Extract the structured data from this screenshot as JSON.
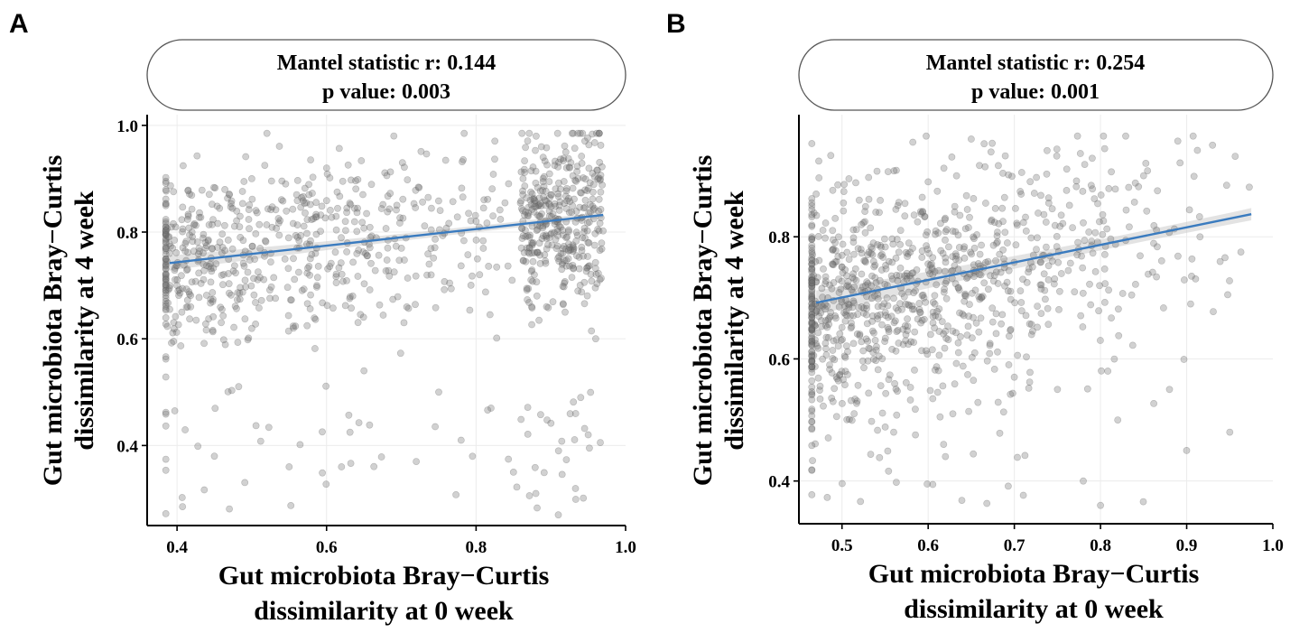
{
  "colors": {
    "points": "#6f6f6f",
    "fit_line": "#3a7bbf",
    "band": "#cccccc",
    "grid": "#ececec",
    "axis": "#000000"
  },
  "chart_data": [
    {
      "panel": "A",
      "type": "scatter",
      "strip_line1": "Mantel statistic r: 0.144",
      "strip_line2": "p value: 0.003",
      "xlabel_line1": "Gut microbiota Bray−Curtis",
      "xlabel_line2": "dissimilarity at 0 week",
      "ylabel_line1": "Gut microbiota Bray−Curtis",
      "ylabel_line2": "dissimilarity at 4 week",
      "xlim": [
        0.36,
        1.0
      ],
      "ylim": [
        0.25,
        1.02
      ],
      "xticks": [
        0.4,
        0.6,
        0.8,
        1.0
      ],
      "xtick_labels": [
        "0.4",
        "0.6",
        "0.8",
        "1.0"
      ],
      "yticks": [
        0.4,
        0.6,
        0.8,
        1.0
      ],
      "ytick_labels": [
        "0.4",
        "0.6",
        "0.8",
        "1.0"
      ],
      "fit": {
        "x": [
          0.39,
          0.97
        ],
        "y": [
          0.742,
          0.832
        ],
        "band_halfwidth": [
          0.014,
          0.004,
          0.006
        ]
      },
      "n_points": 1050,
      "seed": 17,
      "sample_points": {
        "x": [
          0.39,
          0.4,
          0.42,
          0.45,
          0.47,
          0.5,
          0.55,
          0.56,
          0.6,
          0.62,
          0.65,
          0.69,
          0.72,
          0.75,
          0.78,
          0.8,
          0.82,
          0.85,
          0.88,
          0.9,
          0.91,
          0.92,
          0.94,
          0.95,
          0.96
        ],
        "y": [
          0.76,
          0.7,
          0.8,
          0.38,
          0.87,
          0.9,
          0.36,
          0.87,
          0.92,
          0.36,
          0.54,
          0.98,
          0.37,
          0.5,
          0.41,
          0.82,
          0.47,
          0.35,
          0.31,
          0.87,
          0.27,
          0.95,
          0.49,
          0.42,
          0.6
        ]
      }
    },
    {
      "panel": "B",
      "type": "scatter",
      "strip_line1": "Mantel statistic r: 0.254",
      "strip_line2": "p value: 0.001",
      "xlabel_line1": "Gut microbiota Bray−Curtis",
      "xlabel_line2": "dissimilarity at 0 week",
      "ylabel_line1": "Gut microbiota Bray−Curtis",
      "ylabel_line2": "dissimilarity at 4 week",
      "xlim": [
        0.45,
        1.0
      ],
      "ylim": [
        0.33,
        1.0
      ],
      "xticks": [
        0.5,
        0.6,
        0.7,
        0.8,
        0.9,
        1.0
      ],
      "xtick_labels": [
        "0.5",
        "0.6",
        "0.7",
        "0.8",
        "0.9",
        "1.0"
      ],
      "yticks": [
        0.4,
        0.6,
        0.8
      ],
      "ytick_labels": [
        "0.4",
        "0.6",
        "0.8"
      ],
      "fit": {
        "x": [
          0.47,
          0.975
        ],
        "y": [
          0.692,
          0.837
        ],
        "band_halfwidth": [
          0.02,
          0.005,
          0.01
        ]
      },
      "n_points": 1000,
      "seed": 29,
      "sample_points": {
        "x": [
          0.47,
          0.49,
          0.52,
          0.54,
          0.56,
          0.6,
          0.62,
          0.65,
          0.7,
          0.75,
          0.78,
          0.8,
          0.82,
          0.85,
          0.88,
          0.9,
          0.93,
          0.95
        ],
        "y": [
          0.87,
          0.78,
          0.86,
          0.62,
          0.48,
          0.89,
          0.44,
          0.96,
          0.57,
          0.55,
          0.4,
          0.36,
          0.5,
          0.9,
          0.55,
          0.45,
          0.95,
          0.48
        ]
      }
    }
  ]
}
